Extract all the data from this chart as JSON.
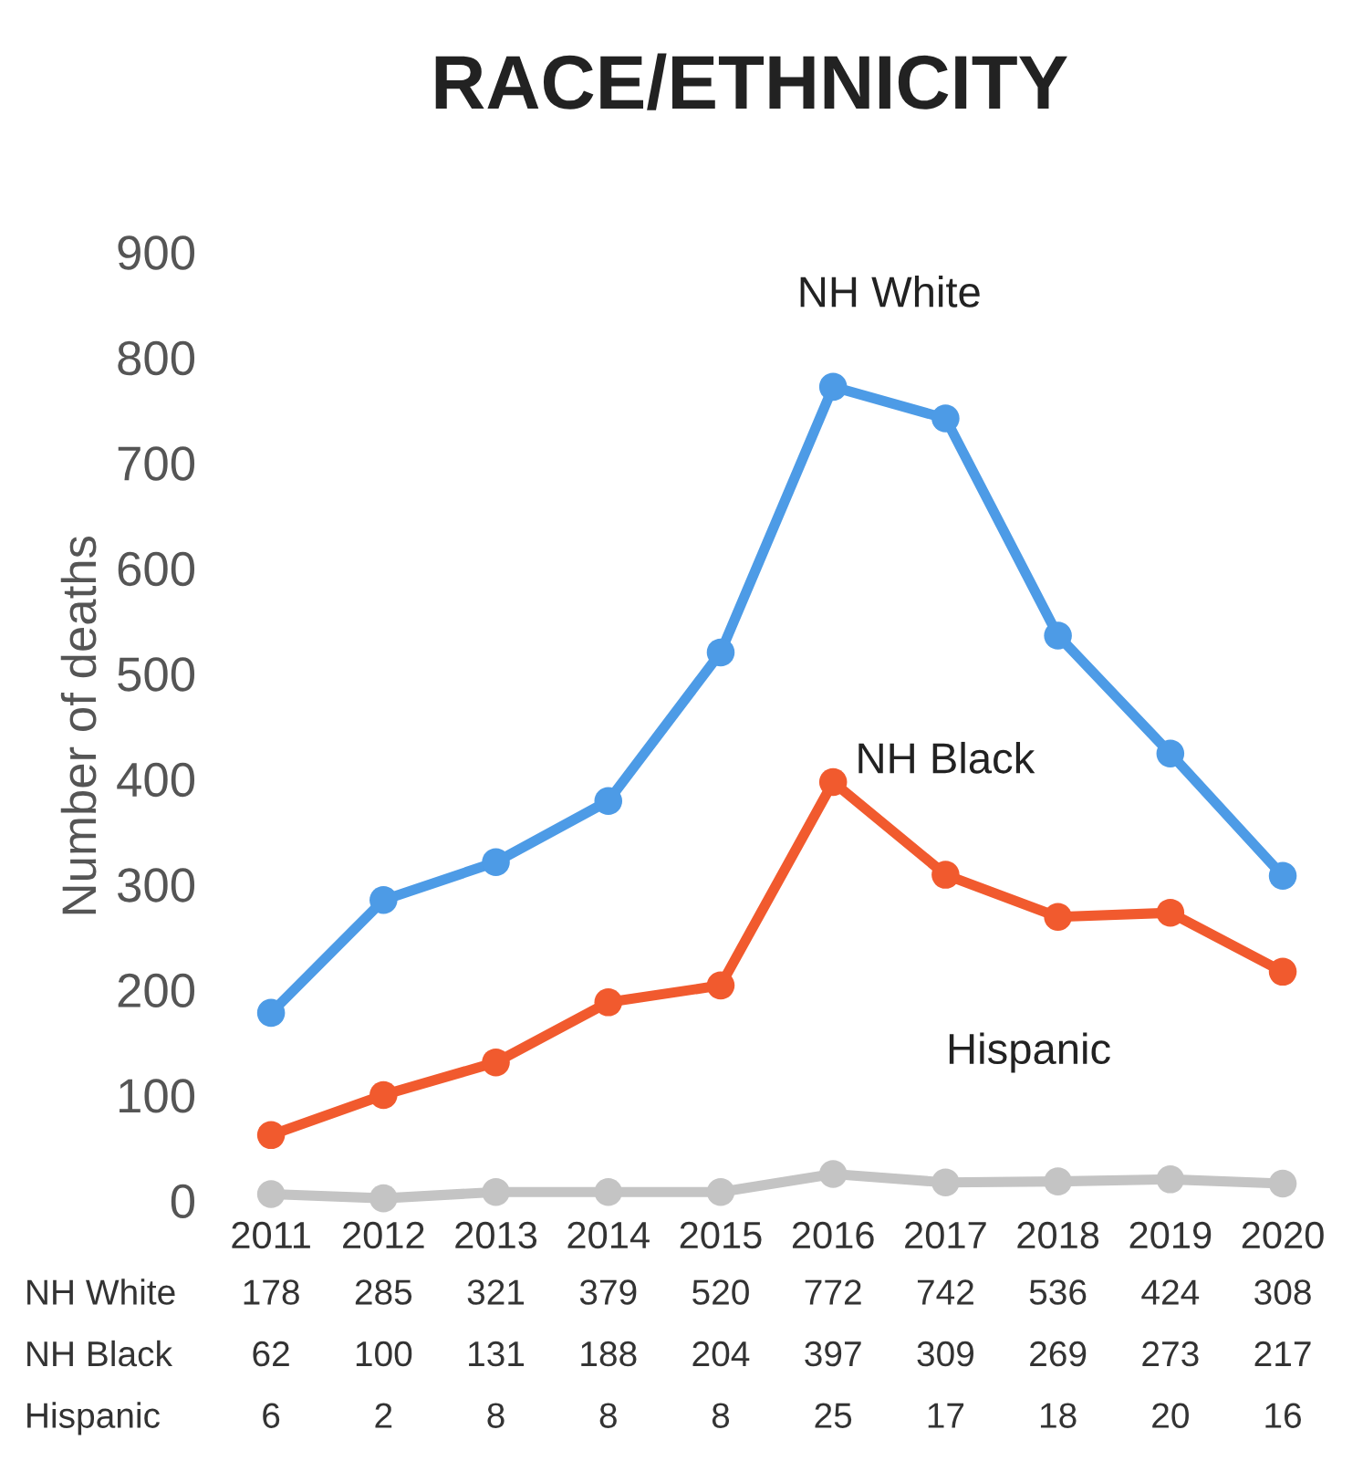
{
  "chart_data": {
    "type": "line",
    "title": "RACE/ETHNICITY",
    "ylabel": "Number of deaths",
    "categories": [
      "2011",
      "2012",
      "2013",
      "2014",
      "2015",
      "2016",
      "2017",
      "2018",
      "2019",
      "2020"
    ],
    "series": [
      {
        "name": "NH White",
        "color": "#4d9be6",
        "values": [
          178,
          285,
          321,
          379,
          520,
          772,
          742,
          536,
          424,
          308
        ]
      },
      {
        "name": "NH Black",
        "color": "#f15a2e",
        "values": [
          62,
          100,
          131,
          188,
          204,
          397,
          309,
          269,
          273,
          217
        ]
      },
      {
        "name": "Hispanic",
        "color": "#c4c4c4",
        "values": [
          6,
          2,
          8,
          8,
          8,
          25,
          17,
          18,
          20,
          16
        ]
      }
    ],
    "ylim": [
      0,
      900
    ],
    "yticks": [
      0,
      100,
      200,
      300,
      400,
      500,
      600,
      700,
      800,
      900
    ],
    "grid": false,
    "legend": false,
    "marker": "circle",
    "line_style": "solid",
    "data_labels": true
  }
}
